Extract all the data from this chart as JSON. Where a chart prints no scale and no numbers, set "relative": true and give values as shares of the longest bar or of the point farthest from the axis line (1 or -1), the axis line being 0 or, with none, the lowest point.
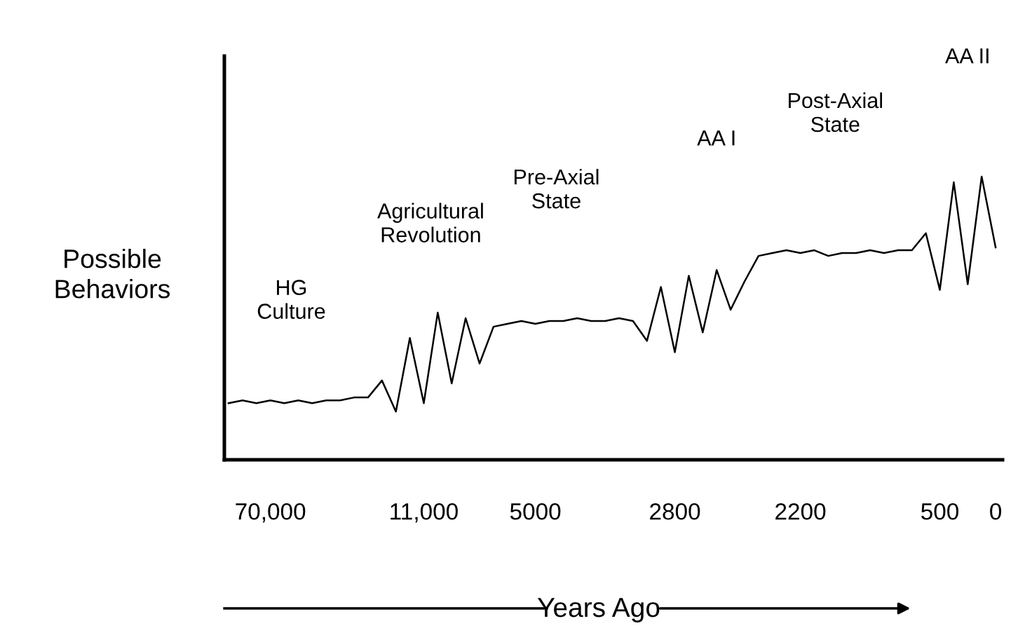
{
  "chart_data": {
    "type": "line",
    "relative": true,
    "ylabel": "Possible\nBehaviors",
    "xlabel": "Years Ago",
    "categories": [
      null,
      null,
      null,
      "70,000",
      null,
      null,
      null,
      null,
      null,
      null,
      null,
      null,
      null,
      null,
      "11,000",
      null,
      null,
      null,
      null,
      null,
      null,
      null,
      "5000",
      null,
      null,
      null,
      null,
      null,
      null,
      null,
      null,
      null,
      "2800",
      null,
      null,
      null,
      null,
      null,
      null,
      null,
      null,
      "2200",
      null,
      null,
      null,
      null,
      null,
      null,
      null,
      null,
      null,
      "500",
      null,
      null,
      null,
      "0"
    ],
    "series": [
      {
        "color": "#000000",
        "values": [
          0.2,
          0.21,
          0.2,
          0.21,
          0.2,
          0.21,
          0.2,
          0.21,
          0.21,
          0.22,
          0.22,
          0.28,
          0.17,
          0.43,
          0.2,
          0.52,
          0.27,
          0.5,
          0.34,
          0.47,
          0.48,
          0.49,
          0.48,
          0.49,
          0.49,
          0.5,
          0.49,
          0.49,
          0.5,
          0.49,
          0.42,
          0.61,
          0.38,
          0.65,
          0.45,
          0.67,
          0.53,
          0.63,
          0.72,
          0.73,
          0.74,
          0.73,
          0.74,
          0.72,
          0.73,
          0.73,
          0.74,
          0.73,
          0.74,
          0.74,
          0.8,
          0.6,
          0.98,
          0.62,
          1.0,
          0.75
        ]
      }
    ],
    "annotations": [
      "HG\nCulture",
      "Agricultural\nRevolution",
      "Pre-Axial\nState",
      "AA I",
      "Post-Axial\nState",
      "AA II"
    ]
  }
}
